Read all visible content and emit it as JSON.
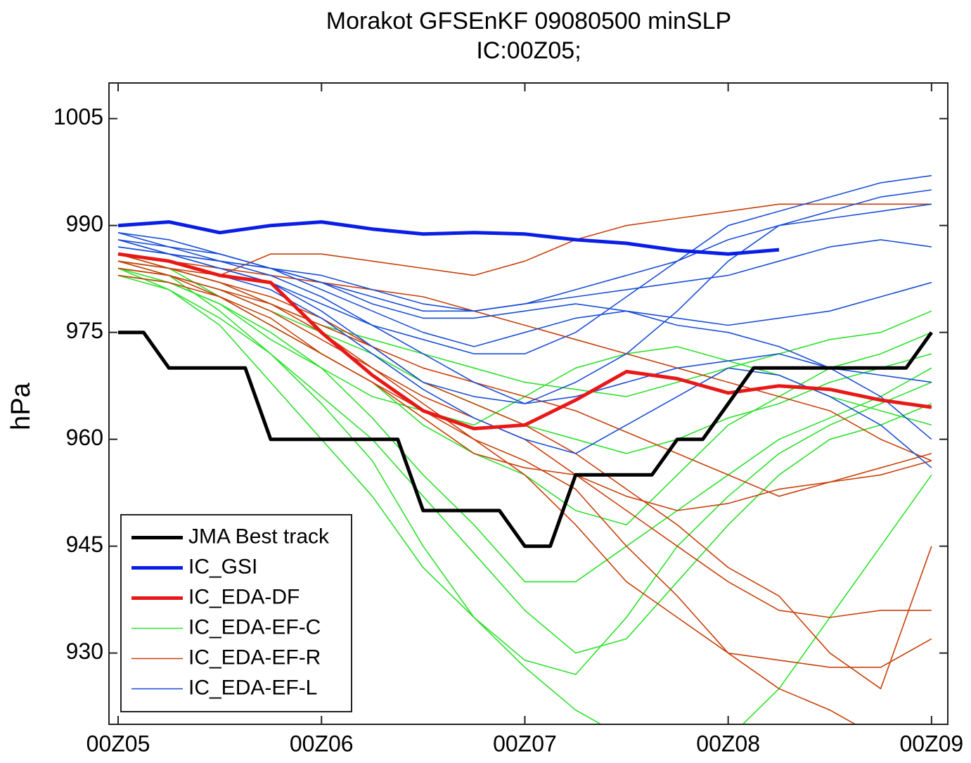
{
  "chart_data": {
    "type": "line",
    "title": "Morakot GFSEnKF 09080500  minSLP",
    "subtitle": "IC:00Z05;",
    "y_label": "hPa",
    "x": [
      0,
      0.25,
      0.5,
      0.75,
      1,
      1.25,
      1.5,
      1.75,
      2,
      2.25,
      2.5,
      2.75,
      3,
      3.25,
      3.5,
      3.75,
      4
    ],
    "xlim": [
      -0.045,
      4.08
    ],
    "xticks": [
      {
        "value": 0,
        "label": "00Z05"
      },
      {
        "value": 1,
        "label": "00Z06"
      },
      {
        "value": 2,
        "label": "00Z07"
      },
      {
        "value": 3,
        "label": "00Z08"
      },
      {
        "value": 4,
        "label": "00Z09"
      }
    ],
    "ylim": [
      920,
      1010
    ],
    "yticks": [
      930,
      945,
      960,
      975,
      990,
      1005
    ],
    "grid": false,
    "legend": "lower left",
    "series": [
      {
        "name": "JMA Best track",
        "color": "#000000",
        "line_width": 5,
        "x": [
          0,
          0.125,
          0.25,
          0.5,
          0.625,
          0.75,
          1,
          1.25,
          1.375,
          1.5,
          1.75,
          1.875,
          2,
          2.125,
          2.25,
          2.5,
          2.625,
          2.75,
          2.875,
          3,
          3.125,
          3.25,
          3.5,
          3.625,
          3.75,
          3.875,
          4
        ],
        "values": [
          975,
          975,
          970,
          970,
          970,
          960,
          960,
          960,
          960,
          950,
          950,
          950,
          945,
          945,
          955,
          955,
          955,
          960,
          960,
          965,
          970,
          970,
          970,
          970,
          970,
          970,
          975
        ]
      },
      {
        "name": "IC_GSI",
        "color": "#0a1ee6",
        "line_width": 5,
        "values": [
          990,
          990.5,
          989,
          990,
          990.5,
          989.5,
          988.8,
          989,
          988.8,
          988,
          987.5,
          986.5,
          986,
          986.6,
          null,
          null,
          null
        ]
      },
      {
        "name": "IC_EDA-DF",
        "color": "#e81818",
        "line_width": 5,
        "values": [
          986,
          985,
          983,
          982,
          975,
          969,
          964,
          961.5,
          962,
          965.5,
          969.5,
          968.5,
          966.5,
          967.5,
          967,
          965.5,
          964.5
        ]
      },
      {
        "name": "IC_EDA-EF-C",
        "color": "#2ee02e",
        "line_width": 1.6,
        "members": [
          [
            984,
            981,
            976,
            968,
            960,
            952,
            942,
            935,
            928,
            922,
            918,
            916,
            918,
            925,
            935,
            945,
            955
          ],
          [
            985,
            983,
            978,
            972,
            965,
            957,
            945,
            935,
            929,
            927,
            935,
            945,
            952,
            958,
            962,
            965,
            968
          ],
          [
            983,
            982,
            979,
            975,
            970,
            963,
            955,
            948,
            940,
            940,
            945,
            950,
            955,
            960,
            963,
            966,
            970
          ],
          [
            986,
            984,
            980,
            976,
            972,
            968,
            962,
            958,
            955,
            950,
            948,
            955,
            962,
            966,
            970,
            972,
            975
          ],
          [
            984,
            983,
            981,
            978,
            975,
            972,
            968,
            965,
            962,
            960,
            958,
            960,
            963,
            965,
            968,
            970,
            972
          ],
          [
            985,
            984,
            982,
            979,
            976,
            974,
            972,
            970,
            968,
            967,
            966,
            968,
            970,
            972,
            974,
            975,
            978
          ],
          [
            983,
            981,
            977,
            972,
            966,
            960,
            952,
            944,
            936,
            930,
            932,
            940,
            948,
            955,
            960,
            962,
            965
          ],
          [
            984,
            982,
            979,
            974,
            970,
            966,
            964,
            962,
            966,
            970,
            972,
            973,
            971,
            969,
            966,
            964,
            962
          ]
        ]
      },
      {
        "name": "IC_EDA-EF-R",
        "color": "#c8400a",
        "line_width": 1.6,
        "members": [
          [
            985,
            984,
            983,
            986,
            986,
            985,
            984,
            983,
            985,
            988,
            990,
            991,
            992,
            993,
            993,
            993,
            993
          ],
          [
            984,
            983,
            981,
            978,
            974,
            970,
            965,
            960,
            955,
            948,
            940,
            935,
            930,
            929,
            928,
            928,
            932
          ],
          [
            985,
            984,
            982,
            979,
            975,
            970,
            966,
            963,
            960,
            955,
            950,
            945,
            940,
            936,
            935,
            936,
            936
          ],
          [
            986,
            984,
            982,
            980,
            977,
            973,
            968,
            965,
            962,
            958,
            953,
            948,
            942,
            938,
            930,
            925,
            945
          ],
          [
            983,
            982,
            980,
            977,
            972,
            968,
            963,
            958,
            956,
            955,
            952,
            950,
            951,
            953,
            954,
            955,
            957
          ],
          [
            984,
            983,
            981,
            979,
            976,
            973,
            970,
            968,
            966,
            964,
            961,
            958,
            955,
            952,
            954,
            956,
            958
          ],
          [
            985,
            983,
            980,
            976,
            972,
            968,
            964,
            960,
            957,
            953,
            945,
            938,
            930,
            925,
            922,
            918,
            918
          ],
          [
            986,
            985,
            984,
            983,
            982,
            981,
            980,
            978,
            976,
            974,
            972,
            970,
            968,
            966,
            964,
            960,
            957
          ]
        ]
      },
      {
        "name": "IC_EDA-EF-L",
        "color": "#1a4ed8",
        "line_width": 1.6,
        "members": [
          [
            988,
            986,
            984,
            982,
            979,
            976,
            974,
            972,
            972,
            975,
            980,
            985,
            990,
            992,
            994,
            996,
            997
          ],
          [
            987,
            986,
            985,
            983,
            980,
            976,
            972,
            968,
            965,
            968,
            972,
            978,
            985,
            990,
            992,
            994,
            995
          ],
          [
            989,
            987,
            985,
            984,
            982,
            979,
            977,
            977,
            978,
            979,
            978,
            977,
            976,
            977,
            978,
            980,
            982
          ],
          [
            986,
            985,
            983,
            981,
            977,
            972,
            967,
            963,
            960,
            958,
            962,
            966,
            970,
            969,
            966,
            962,
            956
          ],
          [
            988,
            986,
            985,
            984,
            982,
            980,
            978,
            978,
            979,
            980,
            981,
            982,
            983,
            985,
            987,
            988,
            987
          ],
          [
            987,
            986,
            984,
            982,
            978,
            973,
            968,
            966,
            965,
            966,
            968,
            970,
            971,
            972,
            970,
            969,
            968
          ],
          [
            988,
            987,
            986,
            984,
            981,
            978,
            975,
            973,
            975,
            977,
            978,
            976,
            975,
            973,
            970,
            966,
            960
          ],
          [
            989,
            988,
            986,
            984,
            983,
            981,
            979,
            978,
            979,
            981,
            983,
            985,
            988,
            990,
            991,
            992,
            993
          ]
        ]
      }
    ]
  }
}
